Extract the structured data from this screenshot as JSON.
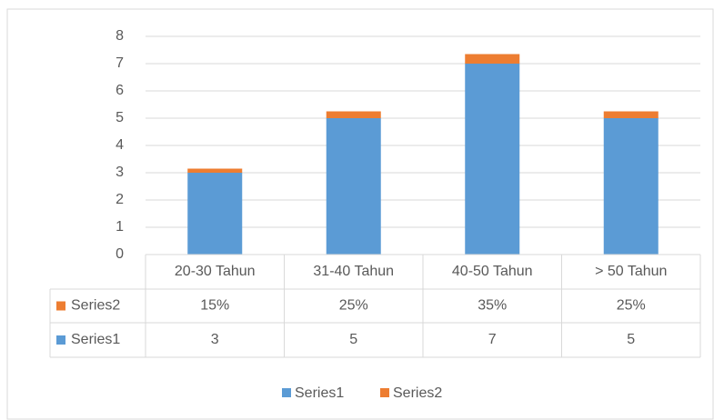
{
  "chart_data": {
    "type": "bar",
    "stacked": true,
    "categories": [
      "20-30  Tahun",
      "31-40  Tahun",
      "40-50 Tahun",
      "> 50 Tahun"
    ],
    "series": [
      {
        "name": "Series1",
        "color": "#5b9bd5",
        "values": [
          3,
          5,
          7,
          5
        ]
      },
      {
        "name": "Series2",
        "color": "#ed7d31",
        "values": [
          0.15,
          0.25,
          0.35,
          0.25
        ],
        "value_labels": [
          "15%",
          "25%",
          "35%",
          "25%"
        ]
      }
    ],
    "ylim": [
      0,
      8
    ],
    "yticks": [
      0,
      1,
      2,
      3,
      4,
      5,
      6,
      7,
      8
    ],
    "grid": true,
    "data_table": true,
    "legend": "bottom"
  }
}
